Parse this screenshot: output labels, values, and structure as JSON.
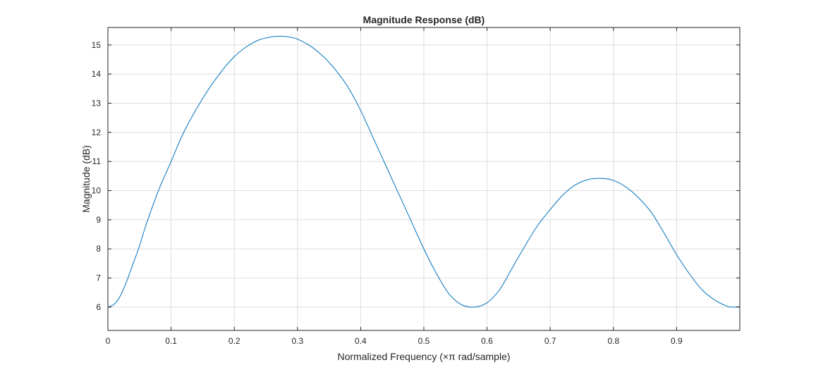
{
  "chart_data": {
    "type": "line",
    "title": "Magnitude Response (dB)",
    "xlabel": "Normalized Frequency (×π rad/sample)",
    "ylabel": "Magnitude (dB)",
    "xlim": [
      0,
      1
    ],
    "ylim": [
      5.2,
      15.6
    ],
    "xticks": [
      0,
      0.1,
      0.2,
      0.3,
      0.4,
      0.5,
      0.6,
      0.7,
      0.8,
      0.9
    ],
    "xtick_labels": [
      "0",
      "0.1",
      "0.2",
      "0.3",
      "0.4",
      "0.5",
      "0.6",
      "0.7",
      "0.8",
      "0.9"
    ],
    "yticks": [
      6,
      7,
      8,
      9,
      10,
      11,
      12,
      13,
      14,
      15
    ],
    "ytick_labels": [
      "6",
      "7",
      "8",
      "9",
      "10",
      "11",
      "12",
      "13",
      "14",
      "15"
    ],
    "grid": true,
    "legend": "none",
    "colors": {
      "line": "#0072BD",
      "grid": "#dedede",
      "axes": "#262626",
      "background": "#ffffff"
    },
    "series": [
      {
        "x": [
          0,
          0.01,
          0.02,
          0.03,
          0.04,
          0.05,
          0.06,
          0.08,
          0.1,
          0.12,
          0.14,
          0.16,
          0.18,
          0.2,
          0.22,
          0.24,
          0.26,
          0.275,
          0.29,
          0.3,
          0.32,
          0.34,
          0.36,
          0.38,
          0.4,
          0.42,
          0.44,
          0.46,
          0.48,
          0.5,
          0.52,
          0.54,
          0.56,
          0.58,
          0.6,
          0.62,
          0.64,
          0.66,
          0.68,
          0.7,
          0.72,
          0.74,
          0.76,
          0.78,
          0.8,
          0.82,
          0.84,
          0.86,
          0.88,
          0.9,
          0.92,
          0.94,
          0.96,
          0.98,
          0.99,
          1.0
        ],
        "y": [
          6.0,
          6.1,
          6.4,
          6.9,
          7.5,
          8.1,
          8.8,
          10.0,
          11.0,
          12.0,
          12.8,
          13.5,
          14.1,
          14.6,
          14.95,
          15.18,
          15.28,
          15.3,
          15.26,
          15.2,
          14.97,
          14.62,
          14.15,
          13.55,
          12.75,
          11.8,
          10.85,
          9.9,
          8.95,
          8.0,
          7.15,
          6.45,
          6.08,
          6.0,
          6.15,
          6.6,
          7.35,
          8.1,
          8.8,
          9.35,
          9.85,
          10.2,
          10.38,
          10.42,
          10.35,
          10.12,
          9.75,
          9.25,
          8.55,
          7.8,
          7.15,
          6.6,
          6.25,
          6.03,
          6.0,
          6.02
        ]
      }
    ]
  }
}
